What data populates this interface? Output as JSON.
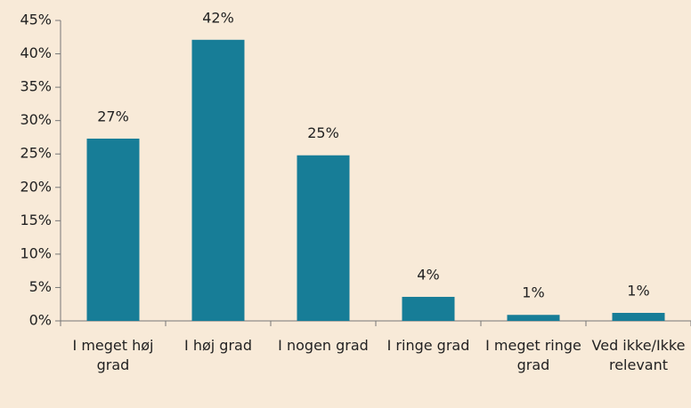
{
  "chart_data": {
    "type": "bar",
    "categories": [
      "I meget høj grad",
      "I høj grad",
      "I nogen grad",
      "I ringe grad",
      "I meget ringe grad",
      "Ved ikke/Ikke relevant"
    ],
    "values": [
      27.3,
      42.1,
      24.8,
      3.6,
      0.9,
      1.2
    ],
    "value_labels": [
      "27%",
      "42%",
      "25%",
      "4%",
      "1%",
      "1%"
    ],
    "color": "#177d97",
    "ylim": [
      0,
      45
    ],
    "yticks": [
      {
        "value": 0,
        "label": "0%"
      },
      {
        "value": 5,
        "label": "5%"
      },
      {
        "value": 10,
        "label": "10%"
      },
      {
        "value": 15,
        "label": "15%"
      },
      {
        "value": 20,
        "label": "20%"
      },
      {
        "value": 25,
        "label": "25%"
      },
      {
        "value": 30,
        "label": "30%"
      },
      {
        "value": 35,
        "label": "35%"
      },
      {
        "value": 40,
        "label": "40%"
      },
      {
        "value": 45,
        "label": "45%"
      }
    ],
    "grid": false
  }
}
